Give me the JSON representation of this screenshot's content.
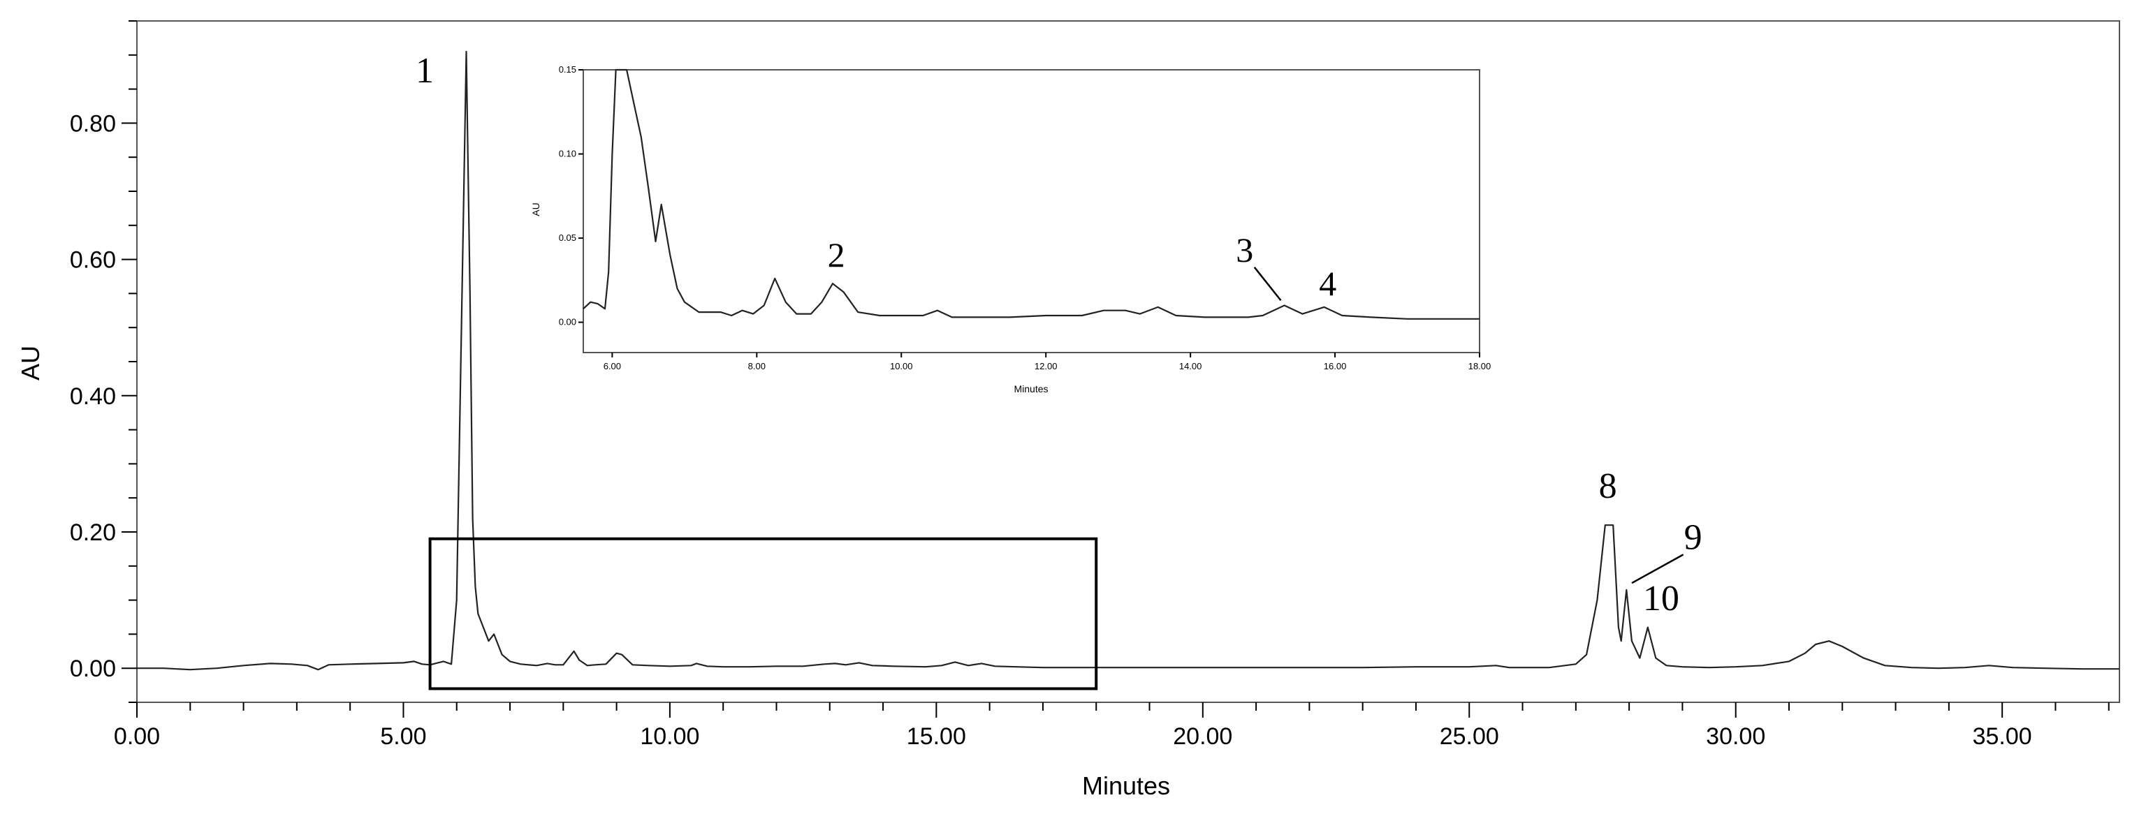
{
  "chart_data": [
    {
      "type": "line",
      "name": "main",
      "xlabel": "Minutes",
      "ylabel": "AU",
      "xlim": [
        0,
        37.2
      ],
      "ylim": [
        -0.05,
        0.95
      ],
      "x_ticks": [
        0,
        5,
        10,
        15,
        20,
        25,
        30,
        35
      ],
      "x_tick_labels": [
        "0.00",
        "5.00",
        "10.00",
        "15.00",
        "20.00",
        "25.00",
        "30.00",
        "35.00"
      ],
      "x_minor_step": 1,
      "y_ticks": [
        0,
        0.2,
        0.4,
        0.6,
        0.8
      ],
      "y_tick_labels": [
        "0.00",
        "0.20",
        "0.40",
        "0.60",
        "0.80"
      ],
      "y_minor_step": 0.05,
      "grid": false,
      "series": [
        {
          "x": [
            0,
            0.5,
            1.0,
            1.5,
            2.0,
            2.5,
            2.9,
            3.2,
            3.4,
            3.6,
            4.0,
            4.5,
            5.0,
            5.2,
            5.35,
            5.5,
            5.75,
            5.9,
            6.0,
            6.1,
            6.18,
            6.25,
            6.3,
            6.35,
            6.4,
            6.5,
            6.6,
            6.7,
            6.85,
            7.0,
            7.2,
            7.5,
            7.7,
            7.85,
            8.0,
            8.2,
            8.3,
            8.45,
            8.6,
            8.8,
            9.0,
            9.1,
            9.3,
            9.6,
            10.0,
            10.4,
            10.5,
            10.7,
            11.0,
            11.5,
            12.0,
            12.5,
            12.9,
            13.1,
            13.3,
            13.55,
            13.8,
            14.2,
            14.8,
            15.1,
            15.35,
            15.6,
            15.85,
            16.1,
            16.5,
            17.0,
            18.0,
            19.0,
            20.0,
            21.0,
            22.0,
            23.0,
            24.0,
            25.0,
            25.5,
            25.75,
            26.0,
            26.5,
            27.0,
            27.2,
            27.4,
            27.55,
            27.7,
            27.8,
            27.85,
            27.95,
            28.05,
            28.2,
            28.35,
            28.5,
            28.7,
            29.0,
            29.5,
            30.0,
            30.5,
            31.0,
            31.3,
            31.5,
            31.75,
            32.0,
            32.4,
            32.8,
            33.3,
            33.8,
            34.3,
            34.75,
            35.2,
            35.8,
            36.5,
            37.2
          ],
          "y": [
            0,
            0,
            -0.002,
            0,
            0.004,
            0.007,
            0.006,
            0.004,
            -0.002,
            0.005,
            0.006,
            0.007,
            0.008,
            0.01,
            0.006,
            0.005,
            0.01,
            0.006,
            0.1,
            0.55,
            0.905,
            0.55,
            0.22,
            0.12,
            0.08,
            0.06,
            0.04,
            0.05,
            0.02,
            0.01,
            0.006,
            0.004,
            0.007,
            0.005,
            0.005,
            0.025,
            0.012,
            0.004,
            0.005,
            0.006,
            0.022,
            0.02,
            0.005,
            0.004,
            0.003,
            0.004,
            0.007,
            0.003,
            0.002,
            0.002,
            0.003,
            0.003,
            0.006,
            0.007,
            0.005,
            0.008,
            0.004,
            0.003,
            0.002,
            0.004,
            0.009,
            0.004,
            0.007,
            0.003,
            0.002,
            0.001,
            0.001,
            0.001,
            0.001,
            0.001,
            0.001,
            0.001,
            0.002,
            0.002,
            0.004,
            0.001,
            0.001,
            0.001,
            0.006,
            0.02,
            0.1,
            0.21,
            0.21,
            0.06,
            0.04,
            0.115,
            0.04,
            0.015,
            0.06,
            0.015,
            0.004,
            0.002,
            0.001,
            0.002,
            0.004,
            0.01,
            0.022,
            0.035,
            0.04,
            0.032,
            0.015,
            0.004,
            0.001,
            0.0,
            0.001,
            0.004,
            0.001,
            0.0,
            -0.001,
            -0.001
          ]
        }
      ],
      "annotations": [
        {
          "text": "1",
          "x": 5.4,
          "y": 0.86
        },
        {
          "text": "8",
          "x": 27.6,
          "y": 0.25
        },
        {
          "text": "9",
          "x": 29.2,
          "y": 0.175,
          "leader_to": [
            28.05,
            0.125
          ]
        },
        {
          "text": "10",
          "x": 28.6,
          "y": 0.085
        }
      ],
      "zoom_region": {
        "x": [
          5.5,
          18.0
        ],
        "y": [
          -0.03,
          0.19
        ]
      }
    },
    {
      "type": "line",
      "name": "inset",
      "xlabel": "Minutes",
      "ylabel": "AU",
      "xlim": [
        5.6,
        18.0
      ],
      "ylim": [
        -0.018,
        0.15
      ],
      "x_ticks": [
        6,
        8,
        10,
        12,
        14,
        16,
        18
      ],
      "x_tick_labels": [
        "6.00",
        "8.00",
        "10.00",
        "12.00",
        "14.00",
        "16.00",
        "18.00"
      ],
      "y_ticks": [
        0,
        0.05,
        0.1,
        0.15
      ],
      "y_tick_labels": [
        "0.00",
        "0.05",
        "0.10",
        "0.15"
      ],
      "grid": false,
      "series": [
        {
          "x": [
            5.6,
            5.7,
            5.8,
            5.9,
            5.95,
            6.0,
            6.05,
            6.1,
            6.2,
            6.3,
            6.4,
            6.5,
            6.6,
            6.68,
            6.8,
            6.9,
            7.0,
            7.2,
            7.5,
            7.65,
            7.8,
            7.95,
            8.1,
            8.25,
            8.4,
            8.55,
            8.75,
            8.9,
            9.05,
            9.2,
            9.4,
            9.7,
            10.0,
            10.3,
            10.5,
            10.7,
            11.0,
            11.5,
            12.0,
            12.5,
            12.8,
            13.1,
            13.3,
            13.55,
            13.8,
            14.2,
            14.8,
            15.0,
            15.3,
            15.55,
            15.85,
            16.1,
            16.5,
            17.0,
            17.5,
            18.0
          ],
          "y": [
            0.008,
            0.012,
            0.011,
            0.008,
            0.03,
            0.1,
            0.16,
            0.2,
            0.19,
            0.13,
            0.11,
            0.08,
            0.048,
            0.07,
            0.04,
            0.02,
            0.012,
            0.006,
            0.006,
            0.004,
            0.007,
            0.005,
            0.01,
            0.026,
            0.012,
            0.005,
            0.005,
            0.012,
            0.023,
            0.018,
            0.006,
            0.004,
            0.004,
            0.004,
            0.007,
            0.003,
            0.003,
            0.003,
            0.004,
            0.004,
            0.007,
            0.007,
            0.005,
            0.009,
            0.004,
            0.003,
            0.003,
            0.004,
            0.01,
            0.005,
            0.009,
            0.004,
            0.003,
            0.002,
            0.002,
            0.002
          ]
        }
      ],
      "annotations": [
        {
          "text": "2",
          "x": 9.1,
          "y": 0.033
        },
        {
          "text": "3",
          "x": 14.75,
          "y": 0.036,
          "leader_to": [
            15.25,
            0.013
          ]
        },
        {
          "text": "4",
          "x": 15.9,
          "y": 0.016
        }
      ]
    }
  ]
}
